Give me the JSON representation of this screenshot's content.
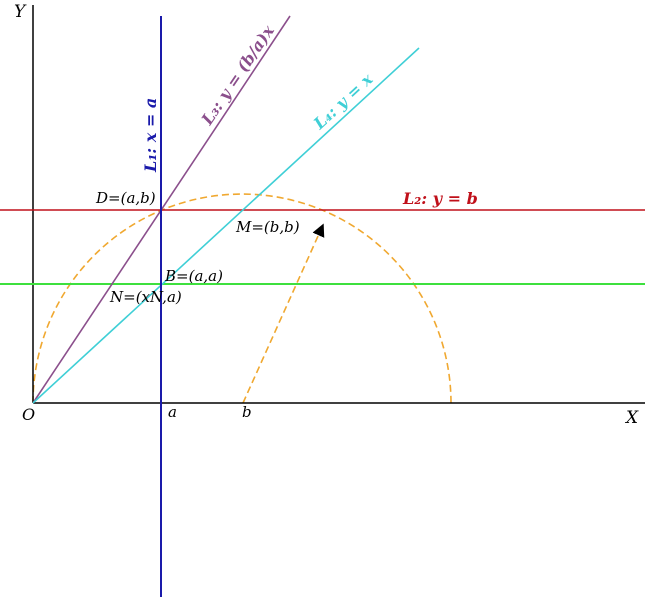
{
  "axes": {
    "x_label": "X",
    "y_label": "Y",
    "origin_label": "O",
    "tick_a": "a",
    "tick_b": "b"
  },
  "lines": {
    "l1": {
      "label": "L₁: x = a",
      "color": "#1a1aaa"
    },
    "l2": {
      "label": "L₂: y = b",
      "color": "#c0101a"
    },
    "l3": {
      "label": "L₃: y = (b/a)x",
      "color": "#8b4f8c"
    },
    "l4": {
      "label": "L₄: y = x",
      "color": "#3fcfd6"
    },
    "y_eq_a": {
      "color": "#3ee03e"
    }
  },
  "points": {
    "D": "D=(a,b)",
    "M": "M=(b,b)",
    "B": "B=(a,a)",
    "N": "N=(xN,a)"
  },
  "arc": {
    "color": "#f0a830"
  }
}
